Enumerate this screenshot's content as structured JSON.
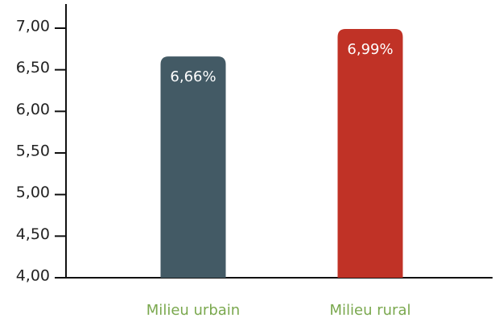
{
  "chart_data": {
    "type": "bar",
    "categories": [
      "Milieu urbain",
      "Milieu rural"
    ],
    "values": [
      6.66,
      6.99
    ],
    "value_labels": [
      "6,66%",
      "6,99%"
    ],
    "colors": [
      "#435a65",
      "#c03226"
    ],
    "ylim": [
      4,
      7
    ],
    "yticks": [
      {
        "value": 4,
        "label": "4,00"
      },
      {
        "value": 4.5,
        "label": "4,50"
      },
      {
        "value": 5,
        "label": "5,00"
      },
      {
        "value": 5.5,
        "label": "5,50"
      },
      {
        "value": 6,
        "label": "6,00"
      },
      {
        "value": 6.5,
        "label": "6,50"
      },
      {
        "value": 7,
        "label": "7,00"
      }
    ],
    "grid": false
  }
}
